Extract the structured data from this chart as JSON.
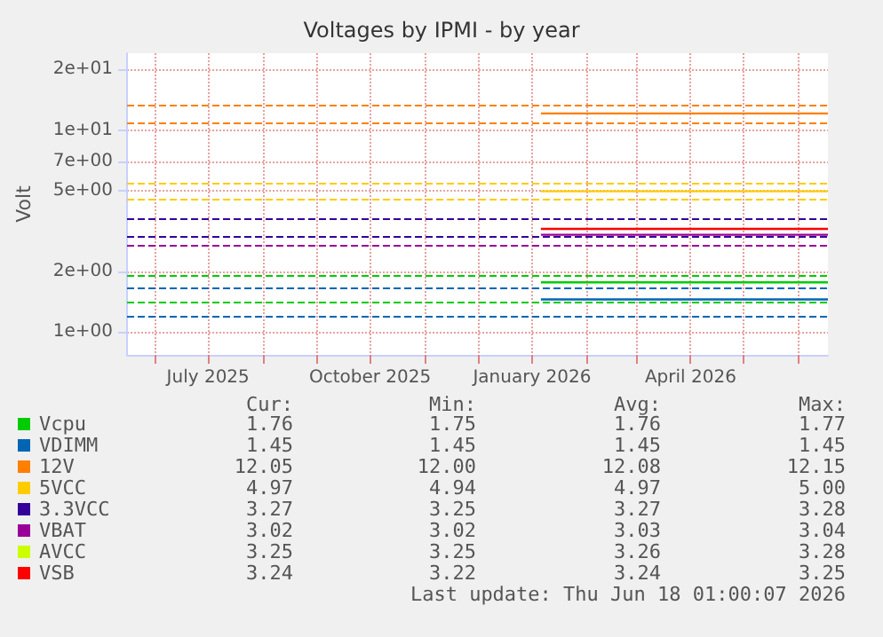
{
  "chart_data": {
    "type": "line",
    "title": "Voltages by IPMI - by year",
    "ylabel": "Volt",
    "log": "y",
    "grid": true,
    "legend": "bottom left",
    "line_style": "solid",
    "marker": "none",
    "xlim": [
      "2025-05-16",
      "2026-06-18"
    ],
    "xticks": [
      {
        "value": "2025-06-01",
        "label": null
      },
      {
        "value": "2025-07-01",
        "label": "July 2025"
      },
      {
        "value": "2025-08-01",
        "label": null
      },
      {
        "value": "2025-09-01",
        "label": null
      },
      {
        "value": "2025-10-01",
        "label": "October 2025"
      },
      {
        "value": "2025-11-01",
        "label": null
      },
      {
        "value": "2025-12-01",
        "label": null
      },
      {
        "value": "2026-01-01",
        "label": "January 2026"
      },
      {
        "value": "2026-02-01",
        "label": null
      },
      {
        "value": "2026-03-01",
        "label": null
      },
      {
        "value": "2026-04-01",
        "label": "April 2026"
      },
      {
        "value": "2026-05-01",
        "label": null
      },
      {
        "value": "2026-06-01",
        "label": null
      }
    ],
    "ylim": [
      0.77,
      24
    ],
    "yticks": [
      {
        "value": 1,
        "label": "1e+00"
      },
      {
        "value": 2,
        "label": "2e+00"
      },
      {
        "value": 5,
        "label": "5e+00"
      },
      {
        "value": 7,
        "label": "7e+00"
      },
      {
        "value": 10,
        "label": "1e+01"
      },
      {
        "value": 20,
        "label": "2e+01"
      }
    ],
    "x": [
      "2026-01-06",
      "2026-06-18"
    ],
    "series": [
      {
        "name": "Vcpu",
        "color": "#00cc00",
        "values": [
          1.76,
          1.76
        ]
      },
      {
        "name": "VDIMM",
        "color": "#0066b3",
        "values": [
          1.45,
          1.45
        ]
      },
      {
        "name": "12V",
        "color": "#ff8000",
        "values": [
          12.08,
          12.08
        ]
      },
      {
        "name": "5VCC",
        "color": "#ffcc00",
        "values": [
          4.97,
          4.97
        ]
      },
      {
        "name": "3.3VCC",
        "color": "#330099",
        "values": [
          null,
          null
        ]
      },
      {
        "name": "VBAT",
        "color": "#990099",
        "values": [
          3.03,
          3.03
        ]
      },
      {
        "name": "AVCC",
        "color": "#ccff00",
        "values": [
          null,
          null
        ]
      },
      {
        "name": "VSB",
        "color": "#ff0000",
        "values": [
          3.24,
          3.24
        ]
      }
    ],
    "ref_lines": [
      {
        "axis": "y",
        "value": 13.2,
        "color": "#ff8000",
        "line_style": "dashed"
      },
      {
        "axis": "y",
        "value": 10.8,
        "color": "#ff8000",
        "line_style": "dashed"
      },
      {
        "axis": "y",
        "value": 5.5,
        "color": "#ffcc00",
        "line_style": "dashed"
      },
      {
        "axis": "y",
        "value": 4.5,
        "color": "#ffcc00",
        "line_style": "dashed"
      },
      {
        "axis": "y",
        "value": 3.63,
        "color": "#330099",
        "line_style": "dashed"
      },
      {
        "axis": "y",
        "value": 2.97,
        "color": "#330099",
        "line_style": "dashed"
      },
      {
        "axis": "y",
        "value": 2.7,
        "color": "#990099",
        "line_style": "dashed"
      },
      {
        "axis": "y",
        "value": 1.9,
        "color": "#00cc00",
        "line_style": "dashed"
      },
      {
        "axis": "y",
        "value": 1.4,
        "color": "#00cc00",
        "line_style": "dashed"
      },
      {
        "axis": "y",
        "value": 1.65,
        "color": "#0066b3",
        "line_style": "dashed"
      },
      {
        "axis": "y",
        "value": 1.2,
        "color": "#0066b3",
        "line_style": "dashed"
      }
    ],
    "annotations": [
      "Cur:",
      "Min:",
      "Avg:",
      "Max:",
      "1.76",
      "1.75",
      "1.76",
      "1.77",
      "1.45",
      "1.45",
      "1.45",
      "1.45",
      "12.05",
      "12.00",
      "12.08",
      "12.15",
      "4.97",
      "4.94",
      "4.97",
      "5.00",
      "3.27",
      "3.25",
      "3.27",
      "3.28",
      "3.02",
      "3.02",
      "3.03",
      "3.04",
      "3.25",
      "3.25",
      "3.26",
      "3.28",
      "3.24",
      "3.22",
      "3.24",
      "3.25",
      "Last update: Thu Jun 18 01:00:07 2026"
    ]
  }
}
